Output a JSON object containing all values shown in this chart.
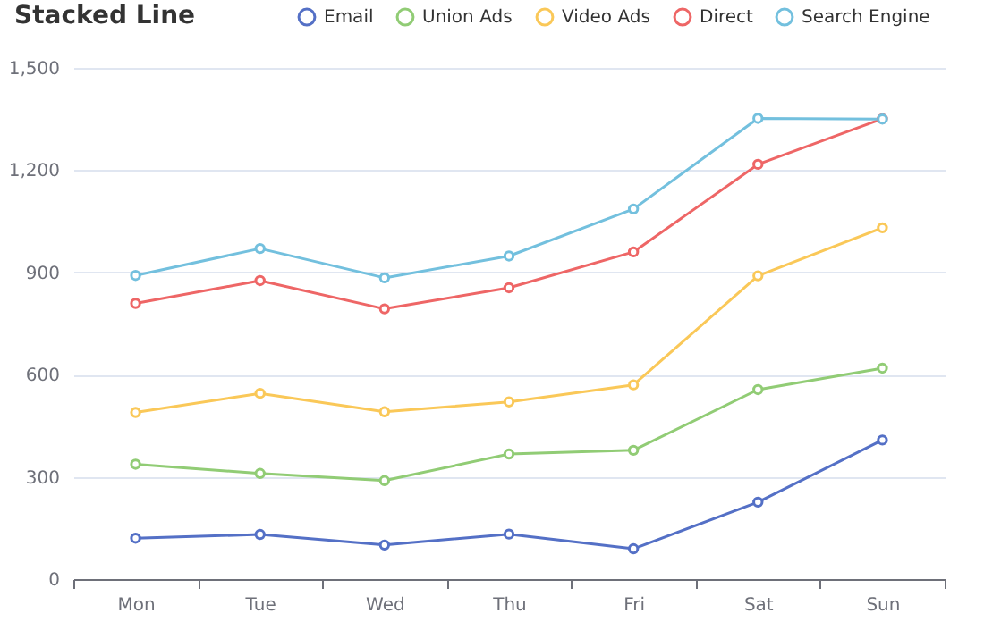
{
  "chart_data": {
    "type": "line",
    "title": "Stacked Line",
    "categories": [
      "Mon",
      "Tue",
      "Wed",
      "Thu",
      "Fri",
      "Sat",
      "Sun"
    ],
    "series": [
      {
        "name": "Email",
        "color": "#5470c6",
        "values": [
          120,
          131,
          100,
          132,
          89,
          226,
          408
        ]
      },
      {
        "name": "Union Ads",
        "color": "#91cc75",
        "values": [
          337,
          310,
          289,
          367,
          378,
          556,
          619
        ]
      },
      {
        "name": "Video Ads",
        "color": "#fac858",
        "values": [
          489,
          545,
          491,
          520,
          570,
          890,
          1031
        ]
      },
      {
        "name": "Direct",
        "color": "#ee6666",
        "values": [
          809,
          876,
          793,
          855,
          960,
          1217,
          1351
        ]
      },
      {
        "name": "Search Engine",
        "color": "#73c0de",
        "values": [
          891,
          970,
          884,
          948,
          1086,
          1352,
          1350
        ]
      }
    ],
    "ylim": [
      0,
      1500
    ],
    "yticks": [
      0,
      300,
      600,
      900,
      {
        "value": 1200,
        "label": "1,200"
      },
      {
        "value": 1500,
        "label": "1,500"
      }
    ],
    "grid": "y",
    "legend": "top",
    "marker": "circle",
    "line_style": "solid"
  }
}
